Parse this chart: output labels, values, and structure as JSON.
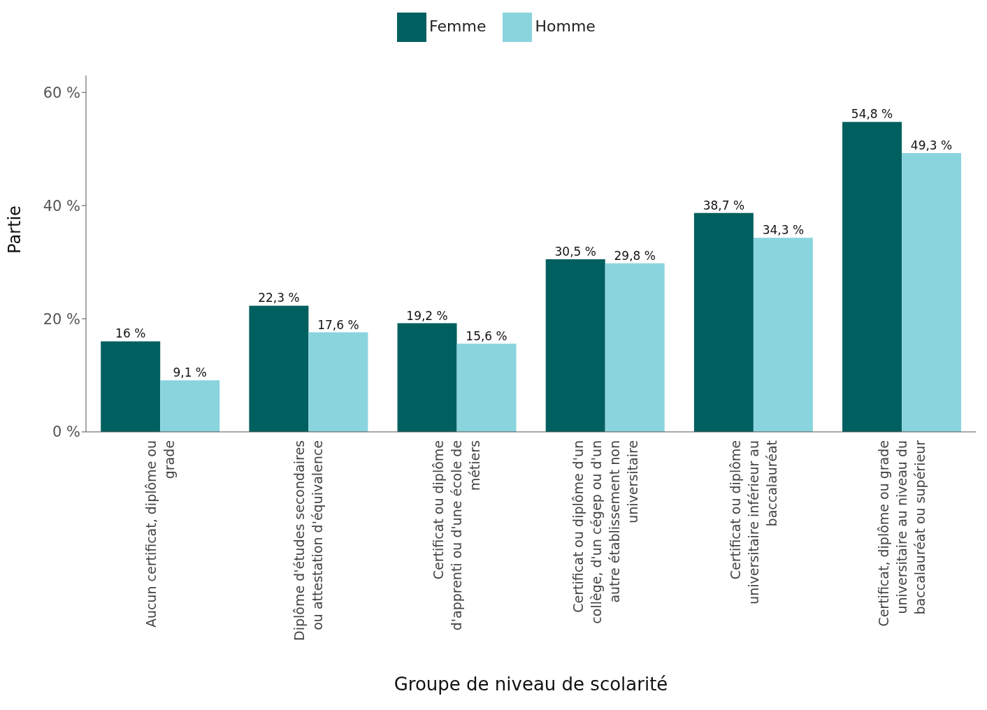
{
  "chart_data": {
    "type": "bar",
    "xlabel": "Groupe de niveau de scolarité",
    "ylabel": "Partie",
    "categories": [
      "Aucun certificat, diplôme ou grade",
      "Diplôme d'études secondaires ou attestation d'équivalence",
      "Certificat ou diplôme d'apprenti ou d'une école de métiers",
      "Certificat ou diplôme d'un collège, d'un cégep ou d'un autre établissement non universitaire",
      "Certificat ou diplôme universitaire inférieur au baccalauréat",
      "Certificat, diplôme ou grade universitaire au niveau du baccalauréat ou supérieur"
    ],
    "series": [
      {
        "name": "Femme",
        "color": "#005f5f",
        "values": [
          16,
          22.3,
          19.2,
          30.5,
          38.7,
          54.8
        ],
        "value_labels": [
          "16 %",
          "22,3 %",
          "19,2 %",
          "30,5 %",
          "38,7 %",
          "54,8 %"
        ]
      },
      {
        "name": "Homme",
        "color": "#8ad4de",
        "values": [
          9.1,
          17.6,
          15.6,
          29.8,
          34.3,
          49.3
        ],
        "value_labels": [
          "9,1 %",
          "17,6 %",
          "15,6 %",
          "29,8 %",
          "34,3 %",
          "49,3 %"
        ]
      }
    ],
    "ylim": [
      0,
      63
    ],
    "yticks": [
      {
        "value": 0,
        "label": "0 %"
      },
      {
        "value": 20,
        "label": "20 %"
      },
      {
        "value": 40,
        "label": "40 %"
      },
      {
        "value": 60,
        "label": "60 %"
      }
    ],
    "grid": false,
    "legend": "top"
  }
}
